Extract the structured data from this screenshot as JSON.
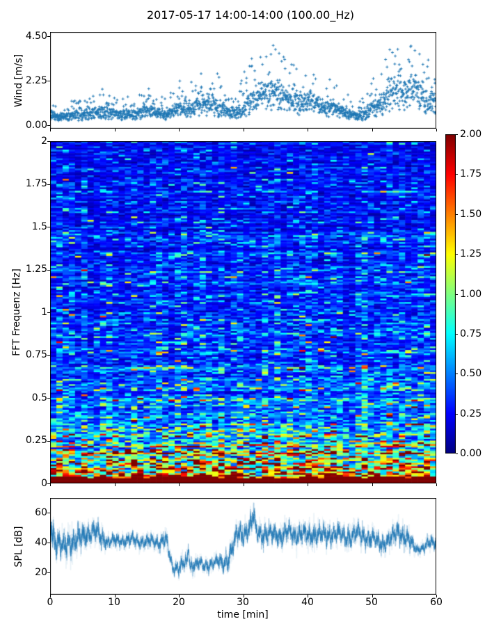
{
  "title": "2017-05-17 14:00-14:00 (100.00_Hz)",
  "colors": {
    "series": "#1f77b4",
    "axis": "#000000",
    "background": "#ffffff"
  },
  "chart_data": [
    {
      "id": "wind",
      "type": "scatter",
      "ylabel": "Wind [m/s]",
      "marker": "+",
      "color": "#1f77b4",
      "xlim": [
        0,
        60
      ],
      "ylim": [
        -0.15,
        4.7
      ],
      "yticks": [
        "0.00",
        "2.25",
        "4.50"
      ],
      "ytick_values": [
        0,
        2.25,
        4.5
      ],
      "xtick_values": [
        0,
        10,
        20,
        30,
        40,
        50,
        60
      ],
      "n_points": 1800,
      "minute_mean": [
        0.55,
        0.5,
        0.45,
        0.55,
        0.6,
        0.65,
        0.6,
        0.7,
        0.75,
        0.7,
        0.65,
        0.6,
        0.65,
        0.6,
        0.7,
        0.85,
        0.8,
        0.7,
        0.65,
        0.8,
        0.9,
        0.85,
        1.0,
        1.1,
        1.2,
        1.3,
        1.0,
        0.9,
        0.75,
        0.7,
        1.0,
        1.3,
        1.6,
        1.7,
        1.8,
        1.9,
        1.6,
        1.5,
        1.4,
        1.3,
        1.5,
        1.3,
        1.1,
        1.0,
        1.1,
        0.8,
        0.7,
        0.55,
        0.5,
        0.7,
        1.0,
        1.2,
        1.5,
        1.8,
        2.0,
        1.9,
        1.8,
        2.0,
        1.6,
        1.4,
        1.3
      ],
      "minute_max": [
        1.1,
        1.0,
        0.9,
        1.2,
        1.3,
        1.5,
        1.3,
        1.6,
        1.9,
        1.6,
        1.4,
        1.3,
        1.5,
        1.4,
        1.6,
        2.0,
        1.8,
        1.5,
        1.4,
        2.0,
        2.3,
        2.0,
        2.4,
        2.6,
        3.0,
        3.4,
        2.6,
        2.2,
        1.8,
        1.6,
        2.6,
        3.2,
        3.8,
        3.6,
        4.0,
        4.4,
        3.6,
        3.4,
        3.2,
        3.0,
        3.4,
        3.0,
        2.6,
        2.4,
        2.8,
        2.0,
        1.7,
        1.3,
        1.2,
        1.8,
        2.4,
        2.8,
        3.4,
        4.0,
        4.4,
        4.2,
        4.0,
        4.45,
        3.6,
        3.2,
        3.0
      ]
    },
    {
      "id": "fft-spectrogram",
      "type": "heatmap",
      "ylabel": "FFT Frequenz [Hz]",
      "colormap": "jet",
      "clim": [
        0,
        2
      ],
      "xlim": [
        0,
        60
      ],
      "ylim": [
        0,
        2
      ],
      "yticks": [
        "2",
        "1.75",
        "1.5",
        "1.25",
        "1",
        "0.75",
        "0.5",
        "0.25",
        "0"
      ],
      "ytick_values": [
        2,
        1.75,
        1.5,
        1.25,
        1,
        0.75,
        0.5,
        0.25,
        0
      ],
      "xtick_values": [
        0,
        10,
        20,
        30,
        40,
        50,
        60
      ],
      "freq_profile": {
        "f": [
          0,
          0.02,
          0.05,
          0.08,
          0.12,
          0.2,
          0.3,
          0.5,
          0.75,
          1.0,
          1.5,
          2.0
        ],
        "value": [
          2.3,
          2.1,
          1.6,
          1.35,
          1.05,
          0.85,
          0.62,
          0.45,
          0.36,
          0.3,
          0.27,
          0.24
        ]
      },
      "noise_sigma": 0.5,
      "grid": {
        "rows": 200,
        "cols": 62
      },
      "colorbar": {
        "ticks": [
          "2.00",
          "1.75",
          "1.50",
          "1.25",
          "1.00",
          "0.75",
          "0.50",
          "0.25",
          "0.00"
        ],
        "tick_values": [
          2,
          1.75,
          1.5,
          1.25,
          1,
          0.75,
          0.5,
          0.25,
          0
        ]
      }
    },
    {
      "id": "spl",
      "type": "line",
      "ylabel": "SPL [dB]",
      "xlabel": "time [min]",
      "color": "#1f77b4",
      "xlim": [
        0,
        60
      ],
      "ylim": [
        5,
        70
      ],
      "yticks": [
        "20",
        "40",
        "60"
      ],
      "ytick_values": [
        20,
        40,
        60
      ],
      "xticks": [
        "0",
        "10",
        "20",
        "30",
        "40",
        "50",
        "60"
      ],
      "xtick_values": [
        0,
        10,
        20,
        30,
        40,
        50,
        60
      ],
      "minute_mean": [
        50,
        40,
        36,
        42,
        40,
        44,
        46,
        47,
        44,
        40,
        41,
        42,
        41,
        42,
        41,
        40,
        41,
        40,
        42,
        24,
        23,
        26,
        25,
        26,
        24,
        26,
        27,
        26,
        32,
        45,
        46,
        50,
        48,
        46,
        45,
        46,
        44,
        47,
        45,
        46,
        44,
        46,
        45,
        44,
        46,
        45,
        44,
        45,
        46,
        44,
        43,
        40,
        40,
        42,
        48,
        44,
        40,
        36,
        36,
        40,
        41
      ],
      "minute_spread": [
        9,
        8,
        7,
        8,
        7,
        7,
        6,
        6,
        6,
        4,
        4,
        4,
        4,
        4,
        4,
        4,
        4,
        4,
        5,
        4,
        4,
        5,
        4,
        4,
        4,
        4,
        4,
        5,
        7,
        6,
        6,
        7,
        6,
        6,
        6,
        6,
        6,
        6,
        6,
        6,
        6,
        6,
        6,
        6,
        6,
        6,
        6,
        6,
        6,
        6,
        6,
        5,
        5,
        6,
        6,
        6,
        5,
        3,
        3,
        4,
        4
      ],
      "spikes": [
        {
          "t": 0.2,
          "amp": 5,
          "width": 0.15
        },
        {
          "t": 21.5,
          "amp": 13,
          "width": 0.12
        },
        {
          "t": 31.6,
          "amp": 9,
          "width": 0.25
        }
      ]
    }
  ]
}
